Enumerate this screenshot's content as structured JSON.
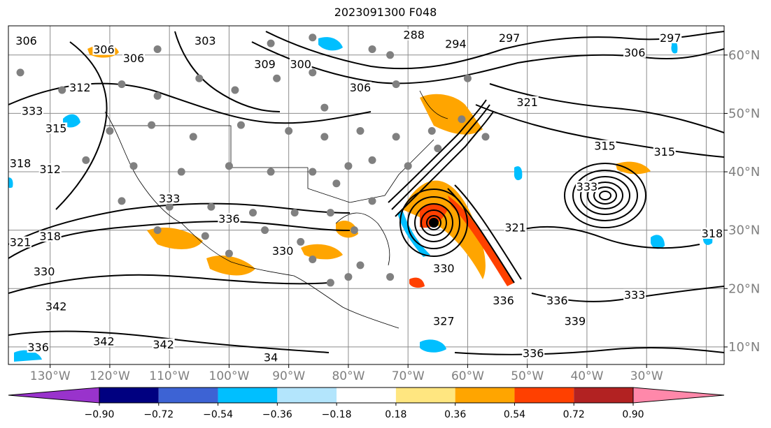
{
  "title": "2023091300 F048",
  "map": {
    "lon_range": [
      -137,
      -17
    ],
    "lat_range": [
      7,
      65
    ],
    "lat_labels": [
      "10°N",
      "20°N",
      "30°N",
      "40°N",
      "50°N",
      "60°N"
    ],
    "lat_values": [
      10,
      20,
      30,
      40,
      50,
      60
    ],
    "lon_labels": [
      "130°W",
      "120°W",
      "110°W",
      "100°W",
      "90°W",
      "80°W",
      "70°W",
      "60°W",
      "50°W",
      "40°W",
      "30°W"
    ],
    "lon_values": [
      -130,
      -120,
      -110,
      -100,
      -90,
      -80,
      -70,
      -60,
      -50,
      -40,
      -30
    ],
    "grid": true,
    "contour_color": "#000000",
    "gridline_color": "#8c8c8c",
    "label_color": "#7f7f7f",
    "storm_center": {
      "lon": -68,
      "lat": 31.5,
      "symbol": "filled circle"
    },
    "contour_labels": [
      {
        "text": "306",
        "lon": -134,
        "lat": 62
      },
      {
        "text": "306",
        "lon": -121,
        "lat": 60.5
      },
      {
        "text": "306",
        "lon": -116,
        "lat": 59
      },
      {
        "text": "303",
        "lon": -104,
        "lat": 62
      },
      {
        "text": "288",
        "lon": -69,
        "lat": 63
      },
      {
        "text": "294",
        "lon": -62,
        "lat": 61.5
      },
      {
        "text": "297",
        "lon": -53,
        "lat": 62.5
      },
      {
        "text": "297",
        "lon": -26,
        "lat": 62.5
      },
      {
        "text": "306",
        "lon": -32,
        "lat": 60
      },
      {
        "text": "309",
        "lon": -94,
        "lat": 58
      },
      {
        "text": "300",
        "lon": -88,
        "lat": 58
      },
      {
        "text": "306",
        "lon": -78,
        "lat": 54
      },
      {
        "text": "312",
        "lon": -125,
        "lat": 54
      },
      {
        "text": "315",
        "lon": -129,
        "lat": 47
      },
      {
        "text": "321",
        "lon": -50,
        "lat": 51.5
      },
      {
        "text": "315",
        "lon": -37,
        "lat": 44
      },
      {
        "text": "315",
        "lon": -27,
        "lat": 43
      },
      {
        "text": "312",
        "lon": -130,
        "lat": 40
      },
      {
        "text": "318",
        "lon": -135,
        "lat": 41
      },
      {
        "text": "333",
        "lon": -133,
        "lat": 50
      },
      {
        "text": "333",
        "lon": -110,
        "lat": 35
      },
      {
        "text": "336",
        "lon": -100,
        "lat": 31.5
      },
      {
        "text": "333",
        "lon": -40,
        "lat": 37
      },
      {
        "text": "321",
        "lon": -52,
        "lat": 30
      },
      {
        "text": "318",
        "lon": -19,
        "lat": 29
      },
      {
        "text": "318",
        "lon": -130,
        "lat": 28.5
      },
      {
        "text": "321",
        "lon": -135,
        "lat": 27.5
      },
      {
        "text": "330",
        "lon": -131,
        "lat": 22.5
      },
      {
        "text": "330",
        "lon": -91,
        "lat": 26
      },
      {
        "text": "330",
        "lon": -64,
        "lat": 23
      },
      {
        "text": "336",
        "lon": -54,
        "lat": 17.5
      },
      {
        "text": "336",
        "lon": -45,
        "lat": 17.5
      },
      {
        "text": "333",
        "lon": -32,
        "lat": 18.5
      },
      {
        "text": "342",
        "lon": -129,
        "lat": 16.5
      },
      {
        "text": "339",
        "lon": -42,
        "lat": 14
      },
      {
        "text": "342",
        "lon": -121,
        "lat": 10.5
      },
      {
        "text": "342",
        "lon": -111,
        "lat": 10
      },
      {
        "text": "336",
        "lon": -132,
        "lat": 9.5
      },
      {
        "text": "336",
        "lon": -49,
        "lat": 8.5
      },
      {
        "text": "327",
        "lon": -64,
        "lat": 14
      },
      {
        "text": "34",
        "lon": -93,
        "lat": 7.8
      }
    ]
  },
  "colorbar": {
    "labels": [
      "−0.90",
      "−0.72",
      "−0.54",
      "−0.36",
      "−0.18",
      "0.18",
      "0.36",
      "0.54",
      "0.72",
      "0.90"
    ],
    "colors": [
      "#9933cc",
      "#000080",
      "#3d63d4",
      "#00bfff",
      "#b3e5fc",
      "#ffffff",
      "#ffe680",
      "#ffa500",
      "#ff4000",
      "#b22222",
      "#ff88aa"
    ],
    "extend": "both"
  }
}
